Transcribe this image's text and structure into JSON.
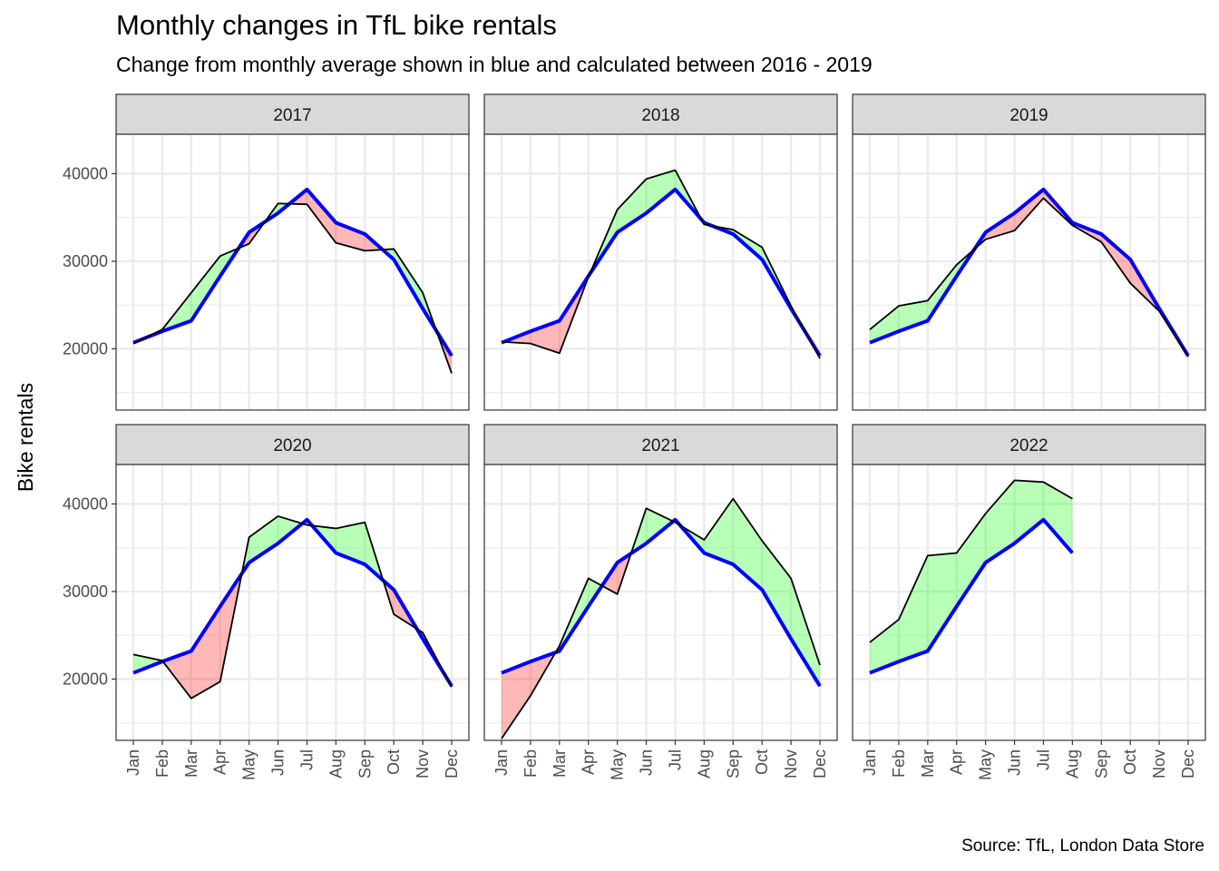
{
  "title": "Monthly changes in TfL bike rentals",
  "subtitle": "Change from monthly average shown in blue and calculated between 2016 - 2019",
  "caption": "Source: TfL, London Data Store",
  "colors": {
    "average": "#0000ff",
    "actual": "#000000",
    "above": "#00ff00",
    "below": "#ff0000",
    "strip": "#d9d9d9",
    "grid": "#ebebeb"
  },
  "chart_data": {
    "type": "line",
    "ylabel": "Bike rentals",
    "xlabel": "",
    "categories": [
      "Jan",
      "Feb",
      "Mar",
      "Apr",
      "May",
      "Jun",
      "Jul",
      "Aug",
      "Sep",
      "Oct",
      "Nov",
      "Dec"
    ],
    "ylim": [
      13000,
      44500
    ],
    "y_ticks": [
      20000,
      30000,
      40000
    ],
    "grid": true,
    "legend": "none",
    "monthly_average": [
      20700,
      22000,
      23200,
      28300,
      33300,
      35500,
      38200,
      34400,
      33100,
      30200,
      24600,
      19200
    ],
    "panels": [
      {
        "year": "2017",
        "actual": [
          20600,
          22200,
          26400,
          30600,
          32000,
          36600,
          36500,
          32100,
          31200,
          31400,
          26400,
          17200
        ]
      },
      {
        "year": "2018",
        "actual": [
          20800,
          20600,
          19500,
          28200,
          35900,
          39400,
          40400,
          34200,
          33600,
          31600,
          24900,
          18900
        ]
      },
      {
        "year": "2019",
        "actual": [
          22200,
          24900,
          25500,
          29600,
          32500,
          33500,
          37200,
          34100,
          32200,
          27500,
          24300,
          19100
        ]
      },
      {
        "year": "2020",
        "actual": [
          22800,
          22100,
          17800,
          19700,
          36200,
          38600,
          37600,
          37200,
          37900,
          27400,
          25300,
          19100
        ]
      },
      {
        "year": "2021",
        "actual": [
          13200,
          18100,
          23800,
          31500,
          29700,
          39500,
          37900,
          35900,
          40600,
          35800,
          31500,
          21600
        ]
      },
      {
        "year": "2022",
        "actual": [
          24200,
          26800,
          34100,
          34400,
          38900,
          42700,
          42500,
          40600
        ]
      }
    ]
  }
}
